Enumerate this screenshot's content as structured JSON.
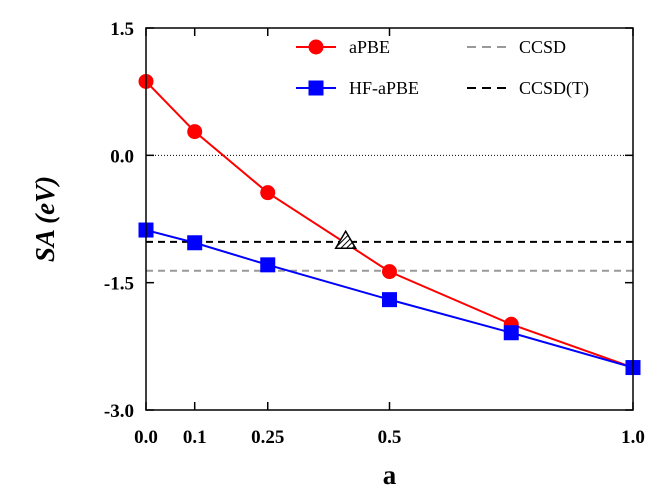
{
  "chart_data": {
    "type": "line",
    "title": "",
    "xlabel": "a",
    "ylabel": "SA (eV)",
    "ylabel_parts": {
      "var": "SA",
      "unit": "(eV)"
    },
    "xlim": [
      0.0,
      1.0
    ],
    "ylim": [
      -3.0,
      1.5
    ],
    "x_ticks": [
      0.0,
      0.1,
      0.25,
      0.5,
      1.0
    ],
    "x_tick_labels": [
      "0.0",
      "0.1",
      "0.25",
      "0.5",
      "1.0"
    ],
    "y_ticks": [
      1.5,
      0.0,
      -1.5,
      -3.0
    ],
    "y_tick_labels": [
      "1.5",
      "0.0",
      "-1.5",
      "-3.0"
    ],
    "series": [
      {
        "name": "aPBE",
        "color": "#ff0000",
        "marker": "circle",
        "x": [
          0.0,
          0.1,
          0.25,
          0.5,
          0.75,
          1.0
        ],
        "y": [
          0.87,
          0.28,
          -0.44,
          -1.37,
          -1.99,
          -2.5
        ]
      },
      {
        "name": "HF-aPBE",
        "color": "#0000ff",
        "marker": "square",
        "x": [
          0.0,
          0.1,
          0.25,
          0.5,
          0.75,
          1.0
        ],
        "y": [
          -0.88,
          -1.03,
          -1.29,
          -1.7,
          -2.09,
          -2.5
        ]
      }
    ],
    "reference_lines": [
      {
        "name": "CCSD",
        "y": -1.36,
        "color": "#999999",
        "style": "dashed"
      },
      {
        "name": "CCSD(T)",
        "y": -1.02,
        "color": "#000000",
        "style": "dashed"
      },
      {
        "name": "zero",
        "y": 0.0,
        "color": "#000000",
        "style": "dotted"
      }
    ],
    "annotations": [
      {
        "type": "hatched-triangle",
        "x": 0.41,
        "y": -1.0
      }
    ],
    "legend": {
      "position": "top",
      "entries": [
        "aPBE",
        "HF-aPBE",
        "CCSD",
        "CCSD(T)"
      ]
    }
  }
}
